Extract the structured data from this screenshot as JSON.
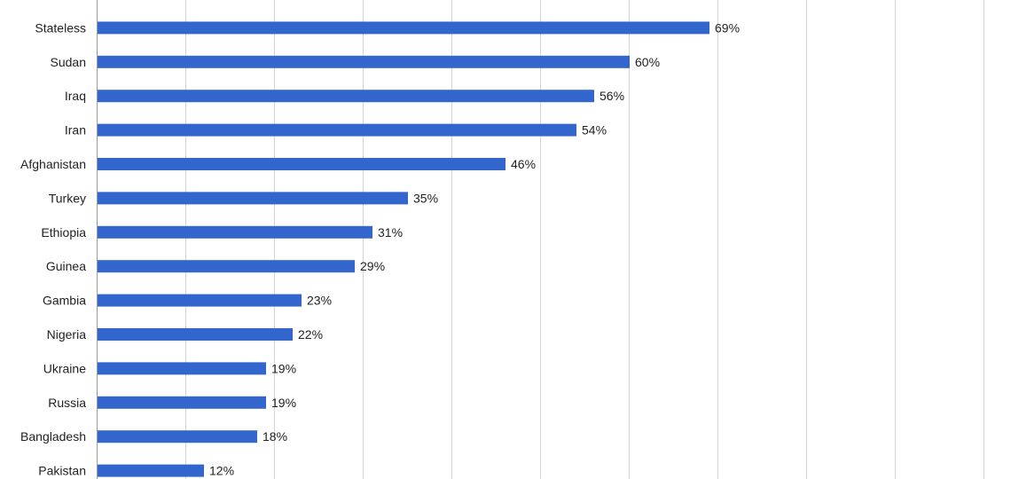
{
  "chart_data": {
    "type": "bar",
    "orientation": "horizontal",
    "title": "",
    "xlabel": "",
    "ylabel": "",
    "xlim": [
      0,
      100
    ],
    "grid": true,
    "legend": "none",
    "bar_color": "#3366cc",
    "value_format": "percent",
    "categories": [
      "",
      "Stateless",
      "Sudan",
      "Iraq",
      "Iran",
      "Afghanistan",
      "Turkey",
      "Ethiopia",
      "Guinea",
      "Gambia",
      "Nigeria",
      "Ukraine",
      "Russia",
      "Bangladesh",
      "Pakistan"
    ],
    "values": [
      70,
      69,
      60,
      56,
      54,
      46,
      35,
      31,
      29,
      23,
      22,
      19,
      19,
      18,
      12
    ],
    "value_labels": [
      "",
      "69%",
      "60%",
      "56%",
      "54%",
      "46%",
      "35%",
      "31%",
      "29%",
      "23%",
      "22%",
      "19%",
      "19%",
      "18%",
      "12%"
    ]
  }
}
